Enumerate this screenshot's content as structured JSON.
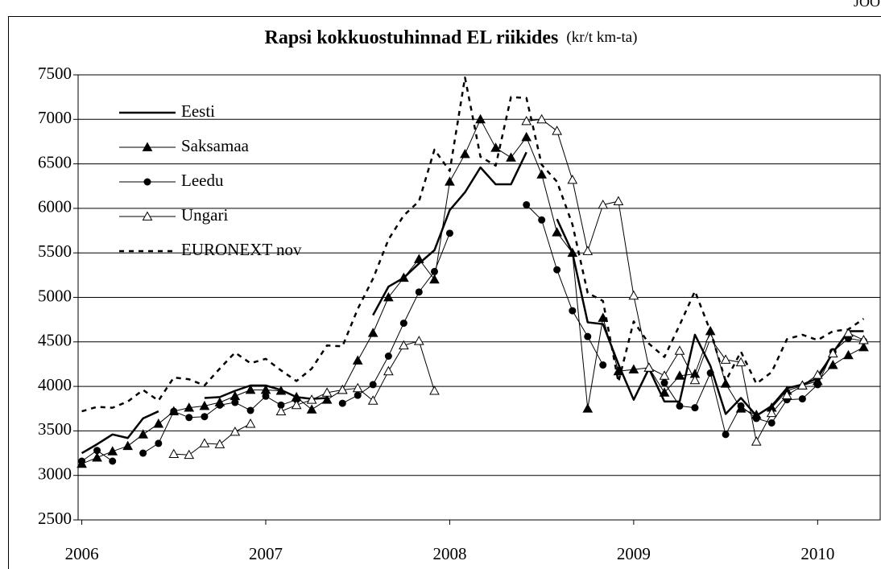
{
  "corner_text": "JOO",
  "chart_data": {
    "type": "line",
    "title": "Rapsi kokkuostuhinnad EL riikides",
    "subtitle": "(kr/t km-ta)",
    "x": [
      2006,
      2006.083,
      2006.167,
      2006.25,
      2006.333,
      2006.417,
      2006.5,
      2006.583,
      2006.667,
      2006.75,
      2006.833,
      2006.917,
      2007,
      2007.083,
      2007.167,
      2007.25,
      2007.333,
      2007.417,
      2007.5,
      2007.583,
      2007.667,
      2007.75,
      2007.833,
      2007.917,
      2008,
      2008.083,
      2008.167,
      2008.25,
      2008.333,
      2008.417,
      2008.5,
      2008.583,
      2008.667,
      2008.75,
      2008.833,
      2008.917,
      2009,
      2009.083,
      2009.167,
      2009.25,
      2009.333,
      2009.417,
      2009.5,
      2009.583,
      2009.667,
      2009.75,
      2009.833,
      2009.917,
      2010,
      2010.083,
      2010.167,
      2010.25
    ],
    "xlim": [
      2005.98,
      2010.34
    ],
    "xticks": [
      2006,
      2007,
      2008,
      2009,
      2010
    ],
    "ylim": [
      2500,
      7500
    ],
    "yticks": [
      2500,
      3000,
      3500,
      4000,
      4500,
      5000,
      5500,
      6000,
      6500,
      7000,
      7500
    ],
    "grid": true,
    "legend": "upper left",
    "series": [
      {
        "name": "Eesti",
        "color": "#000000",
        "width": 2.5,
        "marker": "none",
        "dashed": false,
        "values": [
          3250,
          3350,
          3460,
          3420,
          3640,
          3720,
          null,
          null,
          3870,
          3880,
          3950,
          4010,
          4010,
          3960,
          3880,
          3860,
          3870,
          null,
          null,
          4800,
          5120,
          5220,
          5380,
          5530,
          5980,
          6180,
          6460,
          6270,
          6270,
          6630,
          null,
          5880,
          5500,
          4720,
          4700,
          4250,
          3850,
          4200,
          3830,
          3830,
          4580,
          4230,
          3690,
          3870,
          3670,
          3780,
          3980,
          4020,
          4090,
          4380,
          4620,
          4620
        ]
      },
      {
        "name": "Saksamaa",
        "color": "#000000",
        "width": 1,
        "marker": "triangle",
        "dashed": false,
        "values": [
          3130,
          3200,
          3270,
          3330,
          3460,
          3580,
          3720,
          3760,
          3780,
          3820,
          3890,
          3960,
          3960,
          3950,
          3880,
          3740,
          3850,
          3960,
          4290,
          4600,
          5000,
          5220,
          5430,
          5200,
          6300,
          6610,
          7000,
          6680,
          6570,
          6800,
          6380,
          5730,
          5500,
          3750,
          4770,
          4170,
          4190,
          4210,
          3930,
          4120,
          4140,
          4620,
          4030,
          3750,
          3680,
          3760,
          3950,
          4010,
          4060,
          4240,
          4350,
          4440
        ]
      },
      {
        "name": "Leedu",
        "color": "#000000",
        "width": 1,
        "marker": "circle",
        "dashed": false,
        "values": [
          3160,
          3280,
          3160,
          null,
          3250,
          3360,
          3720,
          3650,
          3660,
          3790,
          3820,
          3730,
          3890,
          3790,
          3850,
          null,
          null,
          3810,
          3900,
          4020,
          4340,
          4710,
          5060,
          5290,
          5720,
          null,
          null,
          null,
          null,
          6040,
          5870,
          5310,
          4850,
          4560,
          4240,
          null,
          null,
          null,
          4040,
          3780,
          3760,
          4150,
          3460,
          3780,
          3640,
          3590,
          3850,
          3860,
          4020,
          4390,
          4540,
          4510
        ]
      },
      {
        "name": "Ungari",
        "color": "#000000",
        "width": 1,
        "marker": "triangle-open",
        "dashed": false,
        "values": [
          null,
          null,
          null,
          null,
          null,
          null,
          3240,
          3230,
          3360,
          3350,
          3490,
          3580,
          null,
          3720,
          3790,
          3850,
          3930,
          3960,
          3980,
          3840,
          4170,
          4460,
          4510,
          3950,
          null,
          null,
          null,
          null,
          null,
          6980,
          7000,
          6870,
          6320,
          5520,
          6040,
          6080,
          5020,
          4210,
          4120,
          4400,
          4070,
          4540,
          4300,
          4270,
          3380,
          3700,
          3900,
          4010,
          4130,
          4370,
          4600,
          4520
        ]
      },
      {
        "name": "EURONEXT nov",
        "color": "#000000",
        "width": 2.5,
        "marker": "none",
        "dashed": true,
        "values": [
          3720,
          3770,
          3760,
          3830,
          3960,
          3840,
          4100,
          4080,
          4010,
          4200,
          4380,
          4260,
          4310,
          4180,
          4060,
          4200,
          4460,
          4450,
          4870,
          5210,
          5650,
          5920,
          6080,
          6660,
          6420,
          7470,
          6580,
          6480,
          7250,
          7240,
          6490,
          6300,
          5820,
          5050,
          4960,
          4050,
          4730,
          4480,
          4330,
          4690,
          5070,
          4620,
          4060,
          4390,
          4030,
          4160,
          4530,
          4580,
          4520,
          4620,
          4640,
          4760
        ]
      }
    ]
  }
}
